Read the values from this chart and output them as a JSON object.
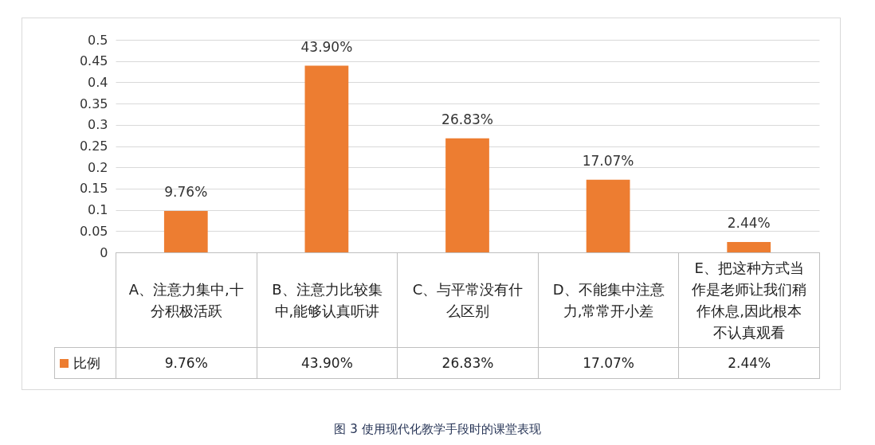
{
  "chart_data": {
    "type": "bar",
    "title": "图 3  使用现代化教学手段时的课堂表现",
    "categories": [
      "A、注意力集中,十分积极活跃",
      "B、注意力比较集中,能够认真听讲",
      "C、与平常没有什么区别",
      "D、不能集中注意力,常常开小差",
      "E、把这种方式当作是老师让我们稍作休息,因此根本不认真观看"
    ],
    "series": [
      {
        "name": "比例",
        "color": "#ed7d31",
        "values": [
          0.0976,
          0.439,
          0.2683,
          0.1707,
          0.0244
        ],
        "value_labels": [
          "9.76%",
          "43.90%",
          "26.83%",
          "17.07%",
          "2.44%"
        ]
      }
    ],
    "ylim": [
      0,
      0.5
    ],
    "yticks": [
      0,
      0.05,
      0.1,
      0.15,
      0.2,
      0.25,
      0.3,
      0.35,
      0.4,
      0.45,
      0.5
    ],
    "grid": "y",
    "legend": "bottom left"
  }
}
